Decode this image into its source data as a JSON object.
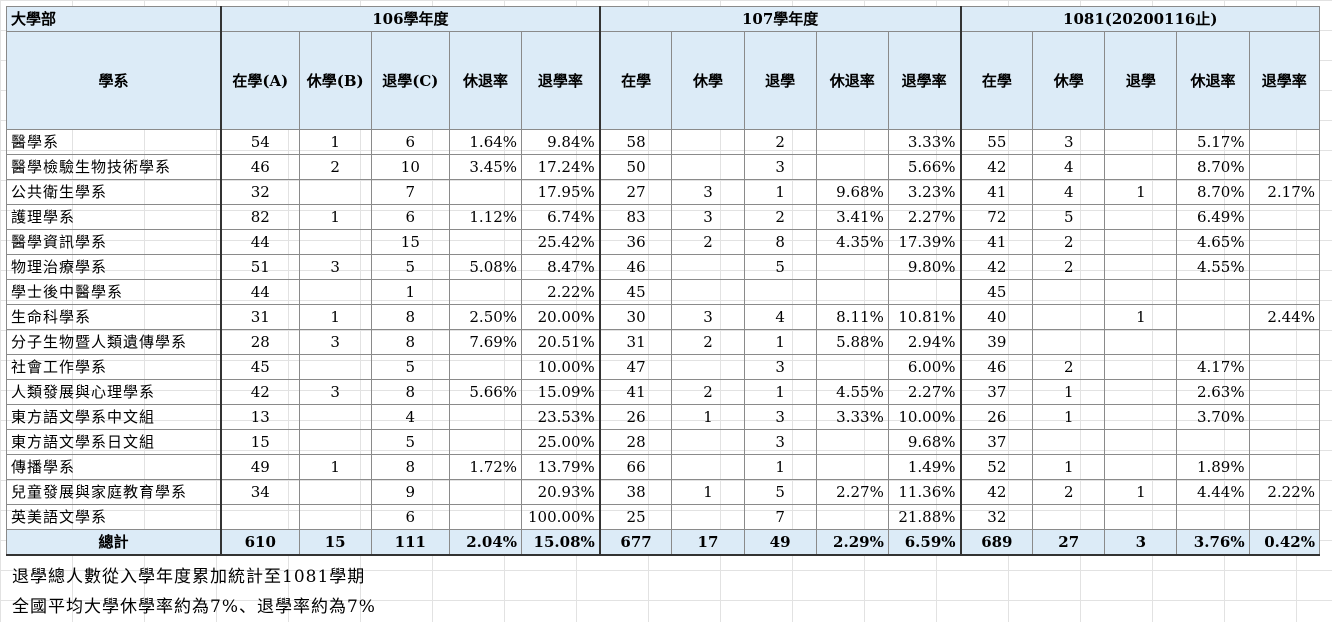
{
  "header": {
    "corner": "大學部",
    "years": [
      "106學年度",
      "107學年度",
      "1081(20200116止)"
    ],
    "dept_label": "學系",
    "y106_cols": [
      "在學(A)",
      "休學(B)",
      "退學(C)",
      "休退率",
      "退學率"
    ],
    "y107_cols": [
      "在學",
      "休學",
      "退學",
      "休退率",
      "退學率"
    ],
    "y1081_cols": [
      "在學",
      "休學",
      "退學",
      "休退率",
      "退學率"
    ]
  },
  "rows": [
    {
      "name": "醫學系",
      "v": [
        "54",
        "1",
        "6",
        "1.64%",
        "9.84%",
        "58",
        "",
        "2",
        "",
        "3.33%",
        "55",
        "3",
        "",
        "5.17%",
        ""
      ]
    },
    {
      "name": "醫學檢驗生物技術學系",
      "v": [
        "46",
        "2",
        "10",
        "3.45%",
        "17.24%",
        "50",
        "",
        "3",
        "",
        "5.66%",
        "42",
        "4",
        "",
        "8.70%",
        ""
      ]
    },
    {
      "name": "公共衛生學系",
      "v": [
        "32",
        "",
        "7",
        "",
        "17.95%",
        "27",
        "3",
        "1",
        "9.68%",
        "3.23%",
        "41",
        "4",
        "1",
        "8.70%",
        "2.17%"
      ]
    },
    {
      "name": "護理學系",
      "v": [
        "82",
        "1",
        "6",
        "1.12%",
        "6.74%",
        "83",
        "3",
        "2",
        "3.41%",
        "2.27%",
        "72",
        "5",
        "",
        "6.49%",
        ""
      ]
    },
    {
      "name": "醫學資訊學系",
      "v": [
        "44",
        "",
        "15",
        "",
        "25.42%",
        "36",
        "2",
        "8",
        "4.35%",
        "17.39%",
        "41",
        "2",
        "",
        "4.65%",
        ""
      ]
    },
    {
      "name": "物理治療學系",
      "v": [
        "51",
        "3",
        "5",
        "5.08%",
        "8.47%",
        "46",
        "",
        "5",
        "",
        "9.80%",
        "42",
        "2",
        "",
        "4.55%",
        ""
      ]
    },
    {
      "name": "學士後中醫學系",
      "v": [
        "44",
        "",
        "1",
        "",
        "2.22%",
        "45",
        "",
        "",
        "",
        "",
        "45",
        "",
        "",
        "",
        ""
      ]
    },
    {
      "name": "生命科學系",
      "v": [
        "31",
        "1",
        "8",
        "2.50%",
        "20.00%",
        "30",
        "3",
        "4",
        "8.11%",
        "10.81%",
        "40",
        "",
        "1",
        "",
        "2.44%"
      ]
    },
    {
      "name": "分子生物暨人類遺傳學系",
      "v": [
        "28",
        "3",
        "8",
        "7.69%",
        "20.51%",
        "31",
        "2",
        "1",
        "5.88%",
        "2.94%",
        "39",
        "",
        "",
        "",
        ""
      ]
    },
    {
      "name": "社會工作學系",
      "v": [
        "45",
        "",
        "5",
        "",
        "10.00%",
        "47",
        "",
        "3",
        "",
        "6.00%",
        "46",
        "2",
        "",
        "4.17%",
        ""
      ]
    },
    {
      "name": "人類發展與心理學系",
      "v": [
        "42",
        "3",
        "8",
        "5.66%",
        "15.09%",
        "41",
        "2",
        "1",
        "4.55%",
        "2.27%",
        "37",
        "1",
        "",
        "2.63%",
        ""
      ]
    },
    {
      "name": "東方語文學系中文組",
      "v": [
        "13",
        "",
        "4",
        "",
        "23.53%",
        "26",
        "1",
        "3",
        "3.33%",
        "10.00%",
        "26",
        "1",
        "",
        "3.70%",
        ""
      ]
    },
    {
      "name": "東方語文學系日文組",
      "v": [
        "15",
        "",
        "5",
        "",
        "25.00%",
        "28",
        "",
        "3",
        "",
        "9.68%",
        "37",
        "",
        "",
        "",
        ""
      ]
    },
    {
      "name": "傳播學系",
      "v": [
        "49",
        "1",
        "8",
        "1.72%",
        "13.79%",
        "66",
        "",
        "1",
        "",
        "1.49%",
        "52",
        "1",
        "",
        "1.89%",
        ""
      ]
    },
    {
      "name": "兒童發展與家庭教育學系",
      "v": [
        "34",
        "",
        "9",
        "",
        "20.93%",
        "38",
        "1",
        "5",
        "2.27%",
        "11.36%",
        "42",
        "2",
        "1",
        "4.44%",
        "2.22%"
      ]
    },
    {
      "name": "英美語文學系",
      "v": [
        "",
        "",
        "6",
        "",
        "100.00%",
        "25",
        "",
        "7",
        "",
        "21.88%",
        "32",
        "",
        "",
        "",
        ""
      ]
    }
  ],
  "total": {
    "name": "總計",
    "v": [
      "610",
      "15",
      "111",
      "2.04%",
      "15.08%",
      "677",
      "17",
      "49",
      "2.29%",
      "6.59%",
      "689",
      "27",
      "3",
      "3.76%",
      "0.42%"
    ]
  },
  "notes": [
    "退學總人數從入學年度累加統計至1081學期",
    "全國平均大學休學率約為7%、退學率約為7%"
  ]
}
